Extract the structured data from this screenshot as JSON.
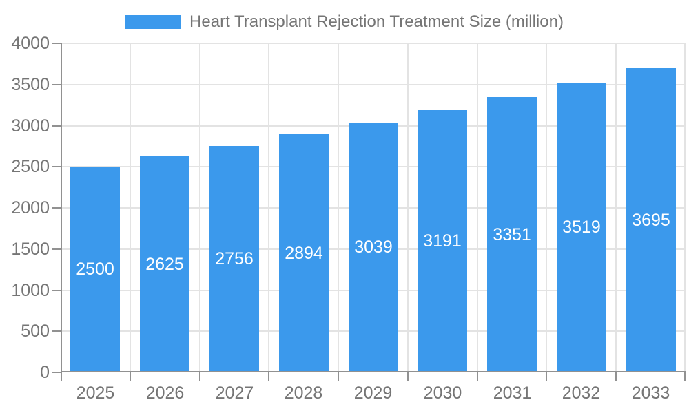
{
  "legend": {
    "label": "Heart Transplant Rejection Treatment Size (million)"
  },
  "colors": {
    "bar": "#3b99ec",
    "grid": "#e3e3e3",
    "axis": "#919191",
    "text": "#757575",
    "bar_label": "#ffffff"
  },
  "chart_data": {
    "type": "bar",
    "title": "Heart Transplant Rejection Treatment Size (million)",
    "categories": [
      "2025",
      "2026",
      "2027",
      "2028",
      "2029",
      "2030",
      "2031",
      "2032",
      "2033"
    ],
    "values": [
      2500,
      2625,
      2756,
      2894,
      3039,
      3191,
      3351,
      3519,
      3695
    ],
    "xlabel": "",
    "ylabel": "",
    "ylim": [
      0,
      4000
    ],
    "ytick_step": 500,
    "ytick_labels": [
      "0",
      "500",
      "1000",
      "1500",
      "2000",
      "2500",
      "3000",
      "3500",
      "4000"
    ],
    "grid": true,
    "legend_position": "top",
    "bar_labels_visible": true
  }
}
